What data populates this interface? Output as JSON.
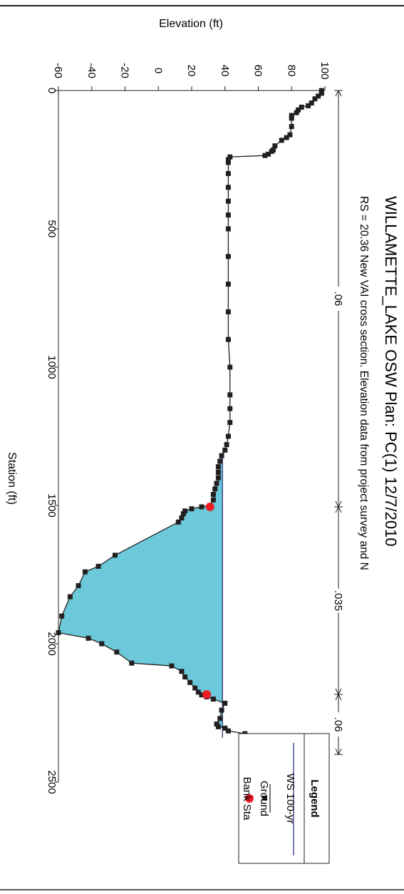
{
  "chart_data": {
    "type": "area",
    "orientation": "rotated-90-clockwise",
    "title": "WILLAMETTE_LAKE OSW      Plan: PC(1)    12/7/2010",
    "subtitle": "RS = 20.36    New VAI cross section.  Elevation data from project survey and N",
    "xlabel": "Station (ft)",
    "ylabel": "Elevation (ft)",
    "xlim": [
      0,
      2500
    ],
    "ylim": [
      -60,
      100
    ],
    "x_ticks": [
      "0",
      "500",
      "1000",
      "1500",
      "2000",
      "2500"
    ],
    "y_ticks": [
      "-60",
      "-40",
      "-20",
      "0",
      "20",
      "40",
      "60",
      "80",
      "100"
    ],
    "x_tick_values": [
      0,
      500,
      1000,
      1500,
      2000,
      2500
    ],
    "y_tick_values": [
      -60,
      -40,
      -20,
      0,
      20,
      40,
      60,
      80,
      100
    ],
    "grid": false,
    "legend": {
      "title": "Legend",
      "placement": "bottom-right",
      "entries": [
        "WS 100-yr",
        "Ground",
        "Bank Sta"
      ]
    },
    "series": [
      {
        "name": "Ground",
        "color": "#231f20",
        "x": [
          0,
          10,
          20,
          30,
          45,
          55,
          60,
          70,
          80,
          90,
          100,
          130,
          160,
          170,
          180,
          200,
          215,
          220,
          230,
          235,
          240,
          250,
          260,
          300,
          350,
          400,
          450,
          500,
          600,
          700,
          800,
          900,
          1000,
          1100,
          1150,
          1200,
          1250,
          1280,
          1300,
          1320,
          1340,
          1360,
          1380,
          1400,
          1420,
          1440,
          1460,
          1480,
          1500,
          1505,
          1512,
          1520,
          1530,
          1545,
          1560,
          1680,
          1720,
          1740,
          1790,
          1830,
          1900,
          1960,
          1980,
          2000,
          2030,
          2070,
          2080,
          2100,
          2120,
          2140,
          2160,
          2175,
          2185,
          2192,
          2200,
          2215,
          2240,
          2270,
          2290,
          2300,
          2305,
          2315,
          2325,
          2335,
          2350,
          2370,
          2390,
          2400
        ],
        "y": [
          98,
          98,
          96,
          94,
          92,
          90,
          86,
          84,
          83,
          80,
          80,
          80,
          79,
          77,
          74,
          70,
          69,
          68,
          66,
          64,
          43,
          42,
          42,
          42,
          42,
          42,
          42,
          42,
          42,
          42,
          42,
          42,
          43,
          43,
          43,
          43,
          42,
          41,
          40,
          38,
          37,
          36,
          36,
          36,
          35,
          34,
          33,
          33,
          31,
          26,
          20,
          16,
          15,
          14,
          12,
          -26,
          -36,
          -44,
          -48,
          -53,
          -58,
          -60,
          -42,
          -34,
          -25,
          -16,
          8,
          14,
          16,
          19,
          22,
          24,
          26,
          29,
          33,
          40,
          38,
          37,
          35,
          36,
          40,
          42,
          52,
          58,
          62,
          64,
          66,
          68
        ]
      },
      {
        "name": "WS 100-yr",
        "color": "#1f2a78",
        "fill": "#6bc9d9",
        "elevation": 38.5,
        "x_range": [
          1310,
          2340
        ]
      },
      {
        "name": "Bank Sta",
        "color": "#ee1c25",
        "points": [
          {
            "x": 1505,
            "y": 31
          },
          {
            "x": 2183,
            "y": 29
          }
        ]
      }
    ],
    "roughness_zones": [
      {
        "label": ".06",
        "x_range": [
          0,
          1505
        ]
      },
      {
        "label": ".035",
        "x_range": [
          1505,
          2183
        ]
      },
      {
        "label": ".06",
        "x_range": [
          2183,
          2400
        ]
      }
    ]
  }
}
